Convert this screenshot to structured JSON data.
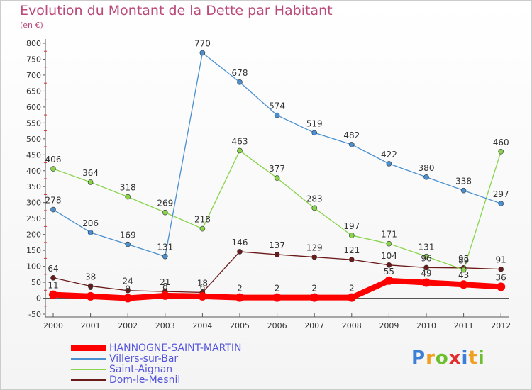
{
  "title": "Evolution du Montant de la Dette par Habitant",
  "subtitle": "(en €)",
  "logo": {
    "text": "Proxiti",
    "letters": [
      {
        "ch": "P",
        "color": "#3a7fd5"
      },
      {
        "ch": "r",
        "color": "#f0a020"
      },
      {
        "ch": "o",
        "color": "#6cbf2a"
      },
      {
        "ch": "x",
        "color": "#e03030"
      },
      {
        "ch": "i",
        "color": "#3a7fd5"
      },
      {
        "ch": "t",
        "color": "#f0a020"
      },
      {
        "ch": "i",
        "color": "#6cbf2a"
      }
    ]
  },
  "chart_data": {
    "type": "line",
    "title": "Evolution du Montant de la Dette par Habitant",
    "subtitle": "(en €)",
    "x": [
      "2000",
      "2001",
      "2002",
      "2003",
      "2004",
      "2005",
      "2006",
      "2007",
      "2008",
      "2009",
      "2010",
      "2011",
      "2012"
    ],
    "ylim": [
      -50,
      800
    ],
    "yticks": [
      -50,
      0,
      50,
      100,
      150,
      200,
      250,
      300,
      350,
      400,
      450,
      500,
      550,
      600,
      650,
      700,
      750,
      800
    ],
    "grid": false,
    "legend": "bottom-left",
    "series": [
      {
        "name": "Dom-le-Mesnil",
        "color": "#6b1a1a",
        "width": "thin",
        "values": [
          64,
          38,
          24,
          21,
          18,
          146,
          137,
          129,
          121,
          104,
          96,
          95,
          91
        ]
      },
      {
        "name": "Saint-Aignan",
        "color": "#88d44a",
        "width": "thin",
        "values": [
          406,
          364,
          318,
          269,
          218,
          463,
          377,
          283,
          197,
          171,
          131,
          89,
          460
        ]
      },
      {
        "name": "Villers-sur-Bar",
        "color": "#4a90d0",
        "width": "thin",
        "values": [
          278,
          206,
          169,
          131,
          770,
          678,
          574,
          519,
          482,
          422,
          380,
          338,
          297
        ]
      },
      {
        "name": "HANNOGNE-SAINT-MARTIN",
        "color": "#ff0000",
        "width": "thick",
        "values": [
          11,
          6,
          0,
          8,
          6,
          2,
          2,
          2,
          2,
          55,
          49,
          43,
          36
        ]
      }
    ],
    "legend_order": [
      "HANNOGNE-SAINT-MARTIN",
      "Villers-sur-Bar",
      "Saint-Aignan",
      "Dom-le-Mesnil"
    ]
  }
}
